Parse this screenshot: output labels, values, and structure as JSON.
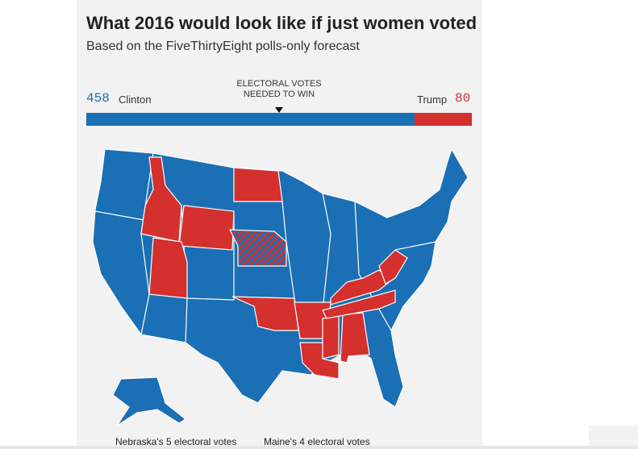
{
  "header": {
    "title": "What 2016 would look like if just women voted",
    "subtitle": "Based on the FiveThirtyEight polls-only forecast"
  },
  "tally": {
    "threshold_label": "ELECTORAL VOTES NEEDED TO WIN",
    "candidates": [
      {
        "name": "Clinton",
        "votes": 458,
        "color": "#1a6fb5"
      },
      {
        "name": "Trump",
        "votes": 80,
        "color": "#d3302e"
      }
    ]
  },
  "footnotes": [
    "Nebraska's 5 electoral votes",
    "Maine's 4 electoral votes"
  ]
}
